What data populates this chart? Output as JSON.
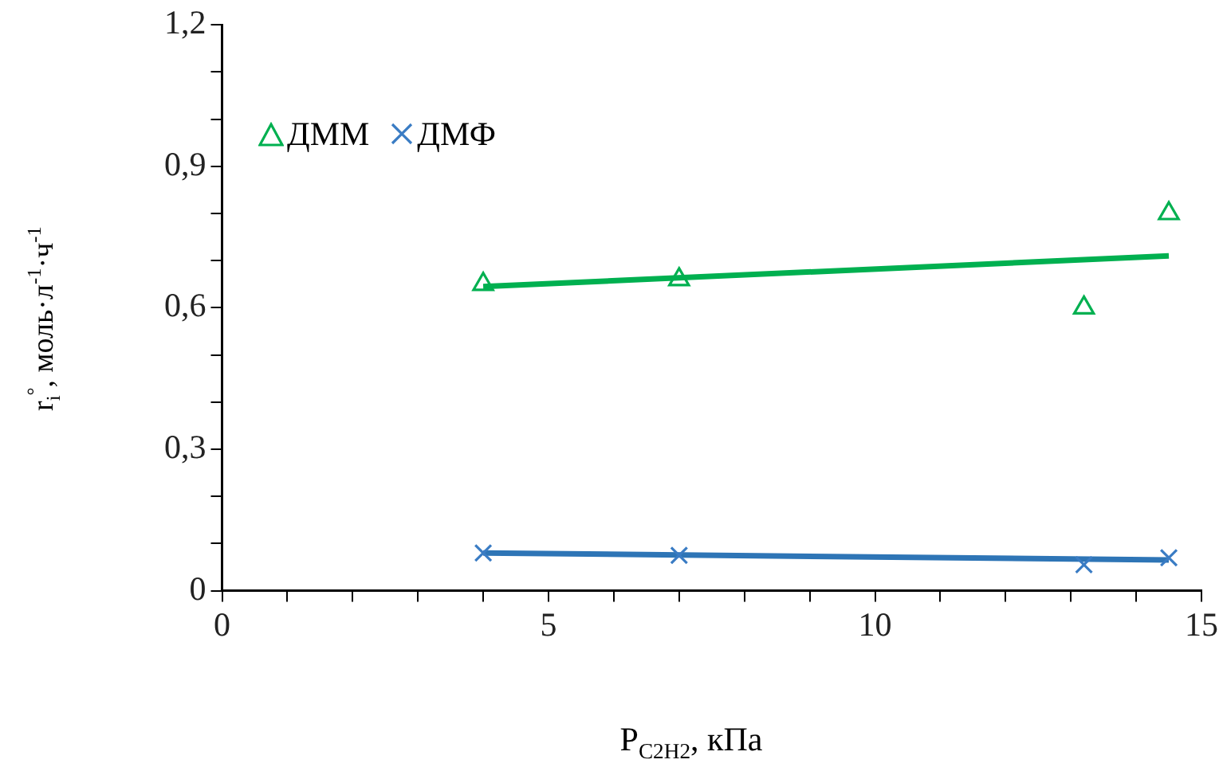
{
  "chart_data": {
    "type": "scatter",
    "xlabel": "P$_{C2H2}$, кПа",
    "ylabel": "r$_{i}$$^{°}$, моль·л$^{-1}$·ч$^{-1}$",
    "xlim": [
      0,
      15
    ],
    "ylim": [
      0,
      1.2
    ],
    "xticks": [
      0,
      {
        "value": 1,
        "label": null
      },
      {
        "value": 2,
        "label": null
      },
      {
        "value": 3,
        "label": null
      },
      {
        "value": 4,
        "label": null
      },
      5,
      {
        "value": 6,
        "label": null
      },
      {
        "value": 7,
        "label": null
      },
      {
        "value": 8,
        "label": null
      },
      {
        "value": 9,
        "label": null
      },
      10,
      {
        "value": 11,
        "label": null
      },
      {
        "value": 12,
        "label": null
      },
      {
        "value": 13,
        "label": null
      },
      {
        "value": 14,
        "label": null
      },
      15
    ],
    "yticks": [
      0,
      {
        "value": 0.1,
        "label": null
      },
      {
        "value": 0.2,
        "label": null
      },
      {
        "value": 0.3,
        "label": "0,3"
      },
      {
        "value": 0.4,
        "label": null
      },
      {
        "value": 0.5,
        "label": null
      },
      {
        "value": 0.6,
        "label": "0,6"
      },
      {
        "value": 0.7,
        "label": null
      },
      {
        "value": 0.8,
        "label": null
      },
      {
        "value": 0.9,
        "label": "0,9"
      },
      {
        "value": 1.0,
        "label": null
      },
      {
        "value": 1.1,
        "label": null
      },
      {
        "value": 1.2,
        "label": "1,2"
      }
    ],
    "grid": false,
    "legend": "top left",
    "series": [
      {
        "name": "ДММ",
        "type": "scatter",
        "marker": "triangle",
        "color": "#00b050",
        "x": [
          4,
          7,
          13.2,
          14.5
        ],
        "values": [
          0.65,
          0.66,
          0.6,
          0.8
        ]
      },
      {
        "name": "ДМФ",
        "type": "scatter",
        "marker": "cross",
        "color": "#3a7cc4",
        "x": [
          4,
          7,
          13.2,
          14.5
        ],
        "values": [
          0.08,
          0.075,
          0.055,
          0.07
        ]
      },
      {
        "type": "line",
        "marker": "none",
        "color": "#00b050",
        "x": [
          4,
          14.5
        ],
        "values": [
          0.645,
          0.71
        ]
      },
      {
        "type": "line",
        "marker": "none",
        "color": "#2e75b6",
        "x": [
          4,
          14.5
        ],
        "values": [
          0.08,
          0.065
        ]
      }
    ]
  }
}
